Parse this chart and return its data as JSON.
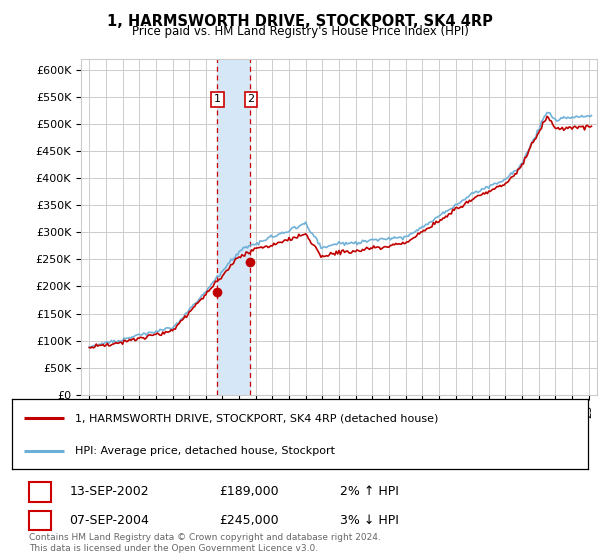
{
  "title": "1, HARMSWORTH DRIVE, STOCKPORT, SK4 4RP",
  "subtitle": "Price paid vs. HM Land Registry's House Price Index (HPI)",
  "ylabel_ticks": [
    "£0",
    "£50K",
    "£100K",
    "£150K",
    "£200K",
    "£250K",
    "£300K",
    "£350K",
    "£400K",
    "£450K",
    "£500K",
    "£550K",
    "£600K"
  ],
  "ytick_values": [
    0,
    50000,
    100000,
    150000,
    200000,
    250000,
    300000,
    350000,
    400000,
    450000,
    500000,
    550000,
    600000
  ],
  "hpi_color": "#6baed6",
  "price_color": "#c00000",
  "sale1_date": 2002.7,
  "sale1_price": 189000,
  "sale2_date": 2004.67,
  "sale2_price": 245000,
  "vline_color": "#cc0000",
  "shade_color": "#d6e8f7",
  "legend_label1": "1, HARMSWORTH DRIVE, STOCKPORT, SK4 4RP (detached house)",
  "legend_label2": "HPI: Average price, detached house, Stockport",
  "table_row1": [
    "1",
    "13-SEP-2002",
    "£189,000",
    "2% ↑ HPI"
  ],
  "table_row2": [
    "2",
    "07-SEP-2004",
    "£245,000",
    "3% ↓ HPI"
  ],
  "footer": "Contains HM Land Registry data © Crown copyright and database right 2024.\nThis data is licensed under the Open Government Licence v3.0.",
  "background_color": "#ffffff",
  "grid_color": "#cccccc",
  "xlim_start": 1994.5,
  "xlim_end": 2025.5,
  "ylim_max": 620000
}
